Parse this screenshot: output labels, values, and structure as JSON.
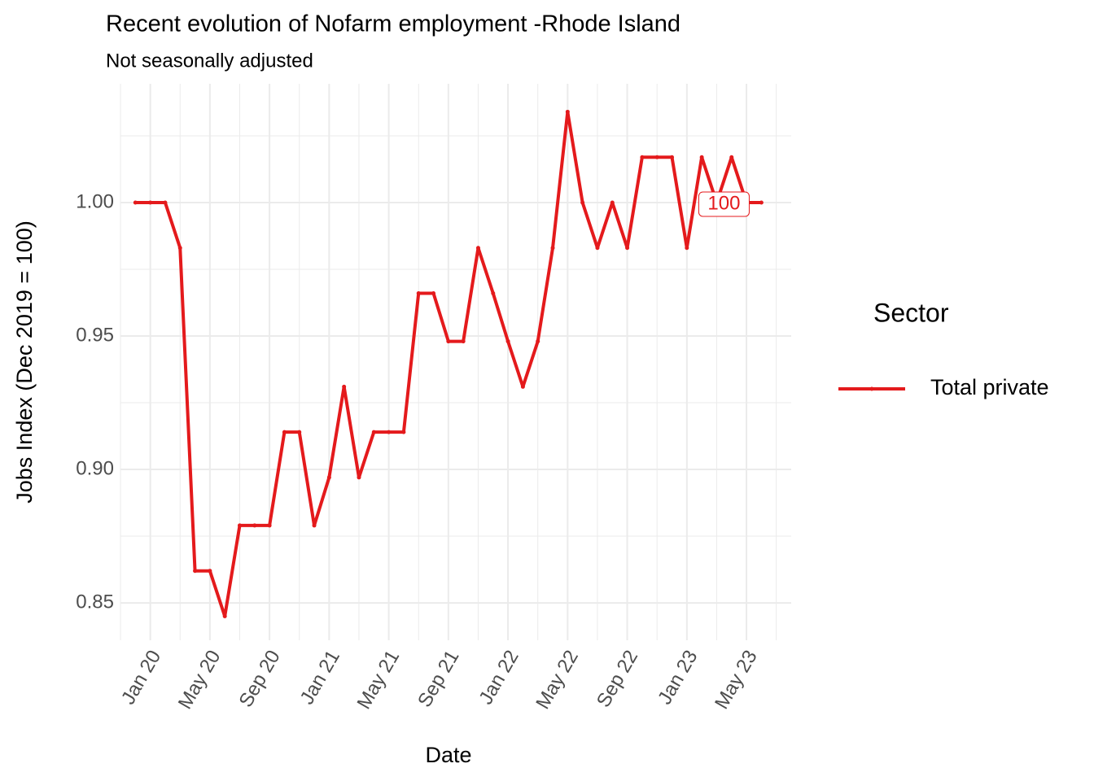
{
  "chart_data": {
    "type": "line",
    "title": "Recent evolution of Nofarm employment -Rhode Island",
    "subtitle": "Not seasonally adjusted",
    "x_label": "Date",
    "y_label": "Jobs Index (Dec 2019 = 100)",
    "x": [
      "2019-12",
      "2020-01",
      "2020-02",
      "2020-03",
      "2020-04",
      "2020-05",
      "2020-06",
      "2020-07",
      "2020-08",
      "2020-09",
      "2020-10",
      "2020-11",
      "2020-12",
      "2021-01",
      "2021-02",
      "2021-03",
      "2021-04",
      "2021-05",
      "2021-06",
      "2021-07",
      "2021-08",
      "2021-09",
      "2021-10",
      "2021-11",
      "2021-12",
      "2022-01",
      "2022-02",
      "2022-03",
      "2022-04",
      "2022-05",
      "2022-06",
      "2022-07",
      "2022-08",
      "2022-09",
      "2022-10",
      "2022-11",
      "2022-12",
      "2023-01",
      "2023-02",
      "2023-03",
      "2023-04",
      "2023-05",
      "2023-06"
    ],
    "series": [
      {
        "name": "Total private",
        "color": "#e41a1c",
        "values": [
          1.0,
          1.0,
          1.0,
          0.983,
          0.862,
          0.862,
          0.845,
          0.879,
          0.879,
          0.879,
          0.914,
          0.914,
          0.879,
          0.897,
          0.931,
          0.897,
          0.914,
          0.914,
          0.914,
          0.966,
          0.966,
          0.948,
          0.948,
          0.983,
          0.966,
          0.948,
          0.931,
          0.948,
          0.983,
          1.034,
          1.0,
          0.983,
          1.0,
          0.983,
          1.017,
          1.017,
          1.017,
          0.983,
          1.017,
          1.0,
          1.017,
          1.0,
          1.0
        ]
      }
    ],
    "xlim": [
      "2019-11",
      "2023-08"
    ],
    "xticks": [
      {
        "value": "2020-01",
        "label": "Jan 20"
      },
      {
        "value": "2020-05",
        "label": "May 20"
      },
      {
        "value": "2020-09",
        "label": "Sep 20"
      },
      {
        "value": "2021-01",
        "label": "Jan 21"
      },
      {
        "value": "2021-05",
        "label": "May 21"
      },
      {
        "value": "2021-09",
        "label": "Sep 21"
      },
      {
        "value": "2022-01",
        "label": "Jan 22"
      },
      {
        "value": "2022-05",
        "label": "May 22"
      },
      {
        "value": "2022-09",
        "label": "Sep 22"
      },
      {
        "value": "2023-01",
        "label": "Jan 23"
      },
      {
        "value": "2023-05",
        "label": "May 23"
      }
    ],
    "ylim": [
      0.836,
      1.0445
    ],
    "yticks": [
      {
        "value": 0.85,
        "label": "0.85"
      },
      {
        "value": 0.9,
        "label": "0.90"
      },
      {
        "value": 0.95,
        "label": "0.95"
      },
      {
        "value": 1.0,
        "label": "1.00"
      }
    ],
    "grid": true,
    "legend": {
      "title": "Sector",
      "position": "right"
    },
    "annotation": {
      "label": "100",
      "x": "2023-03",
      "y": 1.0
    }
  }
}
